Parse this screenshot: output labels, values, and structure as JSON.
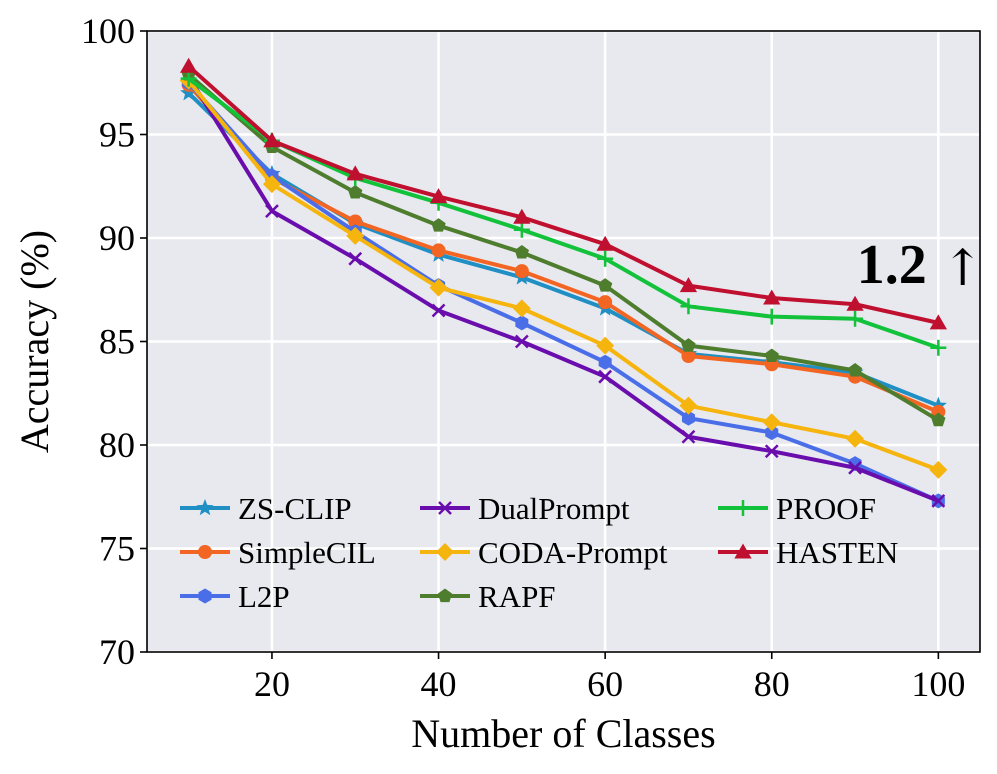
{
  "chart_data": {
    "type": "line",
    "title": "",
    "xlabel": "Number of Classes",
    "ylabel": "Accuracy (%)",
    "xlim": [
      5,
      105
    ],
    "ylim": [
      70,
      100
    ],
    "xticks": [
      20,
      40,
      60,
      80,
      100
    ],
    "xtick_labels": [
      "20",
      "40",
      "60",
      "80",
      "100"
    ],
    "yticks": [
      70,
      75,
      80,
      85,
      90,
      95,
      100
    ],
    "ytick_labels": [
      "70",
      "75",
      "80",
      "85",
      "90",
      "95",
      "100"
    ],
    "grid": true,
    "legend_position": "lower-left",
    "x": [
      10,
      20,
      30,
      40,
      50,
      60,
      70,
      80,
      90,
      100
    ],
    "series": [
      {
        "name": "ZS-CLIP",
        "color": "#1f8fc4",
        "marker": "star",
        "values": [
          97.0,
          93.1,
          90.7,
          89.2,
          88.1,
          86.6,
          84.4,
          84.0,
          83.5,
          81.9
        ]
      },
      {
        "name": "DualPrompt",
        "color": "#6a0dad",
        "marker": "x",
        "values": [
          97.8,
          91.3,
          89.0,
          86.5,
          85.0,
          83.3,
          80.4,
          79.7,
          78.9,
          77.3
        ]
      },
      {
        "name": "PROOF",
        "color": "#12c23a",
        "marker": "plus",
        "values": [
          97.7,
          94.7,
          92.9,
          91.7,
          90.4,
          89.0,
          86.7,
          86.2,
          86.1,
          84.7
        ]
      },
      {
        "name": "SimpleCIL",
        "color": "#f26522",
        "marker": "circle",
        "values": [
          97.4,
          92.9,
          90.8,
          89.4,
          88.4,
          86.9,
          84.3,
          83.9,
          83.3,
          81.6
        ]
      },
      {
        "name": "CODA-Prompt",
        "color": "#f6b50e",
        "marker": "diamond",
        "values": [
          97.6,
          92.6,
          90.1,
          87.6,
          86.6,
          84.8,
          81.9,
          81.1,
          80.3,
          78.8
        ]
      },
      {
        "name": "HASTEN",
        "color": "#c0102f",
        "marker": "triangle",
        "values": [
          98.3,
          94.7,
          93.1,
          92.0,
          91.0,
          89.7,
          87.7,
          87.1,
          86.8,
          85.9
        ]
      },
      {
        "name": "L2P",
        "color": "#4a6ee8",
        "marker": "hexagon",
        "values": [
          97.5,
          93.0,
          90.3,
          87.7,
          85.9,
          84.0,
          81.3,
          80.6,
          79.1,
          77.3
        ]
      },
      {
        "name": "RAPF",
        "color": "#4e7d2e",
        "marker": "pentagon",
        "values": [
          97.9,
          94.4,
          92.2,
          90.6,
          89.3,
          87.7,
          84.8,
          84.3,
          83.6,
          81.2
        ]
      }
    ],
    "annotations": [
      {
        "text": "1.2",
        "arrow": "↑",
        "x": 95,
        "y": 88.8
      }
    ]
  }
}
